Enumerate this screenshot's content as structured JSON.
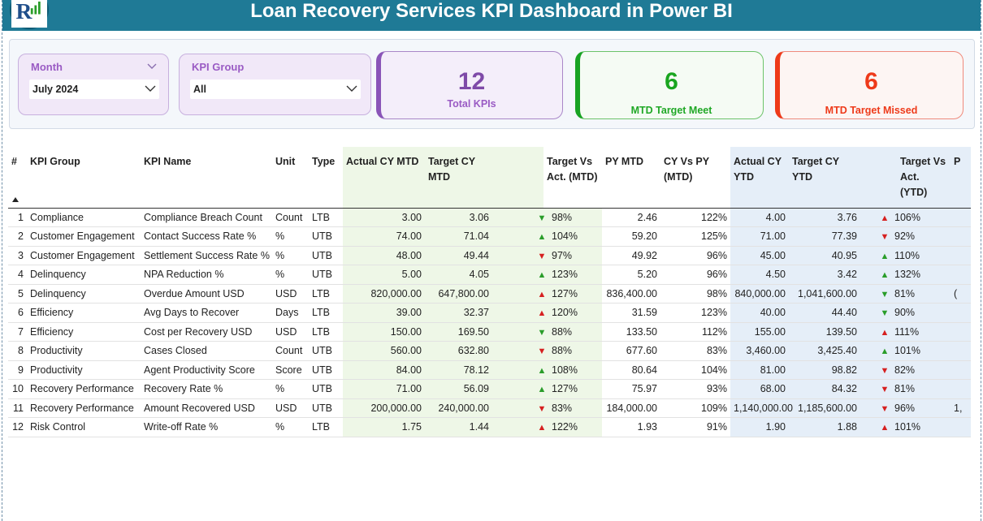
{
  "header": {
    "title": "Loan Recovery Services KPI Dashboard in Power BI"
  },
  "filters": {
    "month": {
      "label": "Month",
      "value": "July 2024"
    },
    "kpi_group": {
      "label": "KPI Group",
      "value": "All"
    }
  },
  "cards": {
    "total": {
      "value": "12",
      "label": "Total KPIs",
      "color": "#8a55b8"
    },
    "meet": {
      "value": "6",
      "label": "MTD Target Meet",
      "color": "#18a323"
    },
    "missed": {
      "value": "6",
      "label": "MTD Target Missed",
      "color": "#ee3a1a"
    }
  },
  "table": {
    "columns": [
      "#",
      "KPI Group",
      "KPI Name",
      "Unit",
      "Type",
      "Actual CY MTD",
      "Target CY MTD",
      "",
      "Target Vs Act. (MTD)",
      "PY MTD",
      "CY Vs PY (MTD)",
      "Actual CY YTD",
      "Target CY YTD",
      "",
      "Target Vs Act. (YTD)",
      "P"
    ],
    "rows": [
      {
        "n": "1",
        "group": "Compliance",
        "name": "Compliance Breach Count",
        "unit": "Count",
        "type": "LTB",
        "act_mtd": "3.00",
        "tgt_mtd": "3.06",
        "mtd_icon": "down-green",
        "tva_mtd": "98%",
        "py_mtd": "2.46",
        "cy_py": "122%",
        "act_ytd": "4.00",
        "tgt_ytd": "3.76",
        "ytd_icon": "up-red",
        "tva_ytd": "106%",
        "py_ytd": ""
      },
      {
        "n": "2",
        "group": "Customer Engagement",
        "name": "Contact Success Rate %",
        "unit": "%",
        "type": "UTB",
        "act_mtd": "74.00",
        "tgt_mtd": "71.04",
        "mtd_icon": "up-green",
        "tva_mtd": "104%",
        "py_mtd": "59.20",
        "cy_py": "125%",
        "act_ytd": "71.00",
        "tgt_ytd": "77.39",
        "ytd_icon": "down-red",
        "tva_ytd": "92%",
        "py_ytd": ""
      },
      {
        "n": "3",
        "group": "Customer Engagement",
        "name": "Settlement Success Rate %",
        "unit": "%",
        "type": "UTB",
        "act_mtd": "48.00",
        "tgt_mtd": "49.44",
        "mtd_icon": "down-red",
        "tva_mtd": "97%",
        "py_mtd": "49.92",
        "cy_py": "96%",
        "act_ytd": "45.00",
        "tgt_ytd": "40.95",
        "ytd_icon": "up-green",
        "tva_ytd": "110%",
        "py_ytd": ""
      },
      {
        "n": "4",
        "group": "Delinquency",
        "name": "NPA Reduction %",
        "unit": "%",
        "type": "UTB",
        "act_mtd": "5.00",
        "tgt_mtd": "4.05",
        "mtd_icon": "up-green",
        "tva_mtd": "123%",
        "py_mtd": "5.20",
        "cy_py": "96%",
        "act_ytd": "4.50",
        "tgt_ytd": "3.42",
        "ytd_icon": "up-green",
        "tva_ytd": "132%",
        "py_ytd": ""
      },
      {
        "n": "5",
        "group": "Delinquency",
        "name": "Overdue Amount USD",
        "unit": "USD",
        "type": "LTB",
        "act_mtd": "820,000.00",
        "tgt_mtd": "647,800.00",
        "mtd_icon": "up-red",
        "tva_mtd": "127%",
        "py_mtd": "836,400.00",
        "cy_py": "98%",
        "act_ytd": "840,000.00",
        "tgt_ytd": "1,041,600.00",
        "ytd_icon": "down-green",
        "tva_ytd": "81%",
        "py_ytd": "("
      },
      {
        "n": "6",
        "group": "Efficiency",
        "name": "Avg Days to Recover",
        "unit": "Days",
        "type": "LTB",
        "act_mtd": "39.00",
        "tgt_mtd": "32.37",
        "mtd_icon": "up-red",
        "tva_mtd": "120%",
        "py_mtd": "31.59",
        "cy_py": "123%",
        "act_ytd": "40.00",
        "tgt_ytd": "44.40",
        "ytd_icon": "down-green",
        "tva_ytd": "90%",
        "py_ytd": ""
      },
      {
        "n": "7",
        "group": "Efficiency",
        "name": "Cost per Recovery USD",
        "unit": "USD",
        "type": "LTB",
        "act_mtd": "150.00",
        "tgt_mtd": "169.50",
        "mtd_icon": "down-green",
        "tva_mtd": "88%",
        "py_mtd": "133.50",
        "cy_py": "112%",
        "act_ytd": "155.00",
        "tgt_ytd": "139.50",
        "ytd_icon": "up-red",
        "tva_ytd": "111%",
        "py_ytd": ""
      },
      {
        "n": "8",
        "group": "Productivity",
        "name": "Cases Closed",
        "unit": "Count",
        "type": "UTB",
        "act_mtd": "560.00",
        "tgt_mtd": "632.80",
        "mtd_icon": "down-red",
        "tva_mtd": "88%",
        "py_mtd": "677.60",
        "cy_py": "83%",
        "act_ytd": "3,460.00",
        "tgt_ytd": "3,425.40",
        "ytd_icon": "up-green",
        "tva_ytd": "101%",
        "py_ytd": ""
      },
      {
        "n": "9",
        "group": "Productivity",
        "name": "Agent Productivity Score",
        "unit": "Score",
        "type": "UTB",
        "act_mtd": "84.00",
        "tgt_mtd": "78.12",
        "mtd_icon": "up-green",
        "tva_mtd": "108%",
        "py_mtd": "80.64",
        "cy_py": "104%",
        "act_ytd": "81.00",
        "tgt_ytd": "98.82",
        "ytd_icon": "down-red",
        "tva_ytd": "82%",
        "py_ytd": ""
      },
      {
        "n": "10",
        "group": "Recovery Performance",
        "name": "Recovery Rate %",
        "unit": "%",
        "type": "UTB",
        "act_mtd": "71.00",
        "tgt_mtd": "56.09",
        "mtd_icon": "up-green",
        "tva_mtd": "127%",
        "py_mtd": "75.97",
        "cy_py": "93%",
        "act_ytd": "68.00",
        "tgt_ytd": "84.32",
        "ytd_icon": "down-red",
        "tva_ytd": "81%",
        "py_ytd": ""
      },
      {
        "n": "11",
        "group": "Recovery Performance",
        "name": "Amount Recovered USD",
        "unit": "USD",
        "type": "UTB",
        "act_mtd": "200,000.00",
        "tgt_mtd": "240,000.00",
        "mtd_icon": "down-red",
        "tva_mtd": "83%",
        "py_mtd": "184,000.00",
        "cy_py": "109%",
        "act_ytd": "1,140,000.00",
        "tgt_ytd": "1,185,600.00",
        "ytd_icon": "down-red",
        "tva_ytd": "96%",
        "py_ytd": "1,"
      },
      {
        "n": "12",
        "group": "Risk Control",
        "name": "Write-off Rate %",
        "unit": "%",
        "type": "LTB",
        "act_mtd": "1.75",
        "tgt_mtd": "1.44",
        "mtd_icon": "up-red",
        "tva_mtd": "122%",
        "py_mtd": "1.93",
        "cy_py": "91%",
        "act_ytd": "1.90",
        "tgt_ytd": "1.88",
        "ytd_icon": "up-red",
        "tva_ytd": "101%",
        "py_ytd": ""
      }
    ]
  }
}
